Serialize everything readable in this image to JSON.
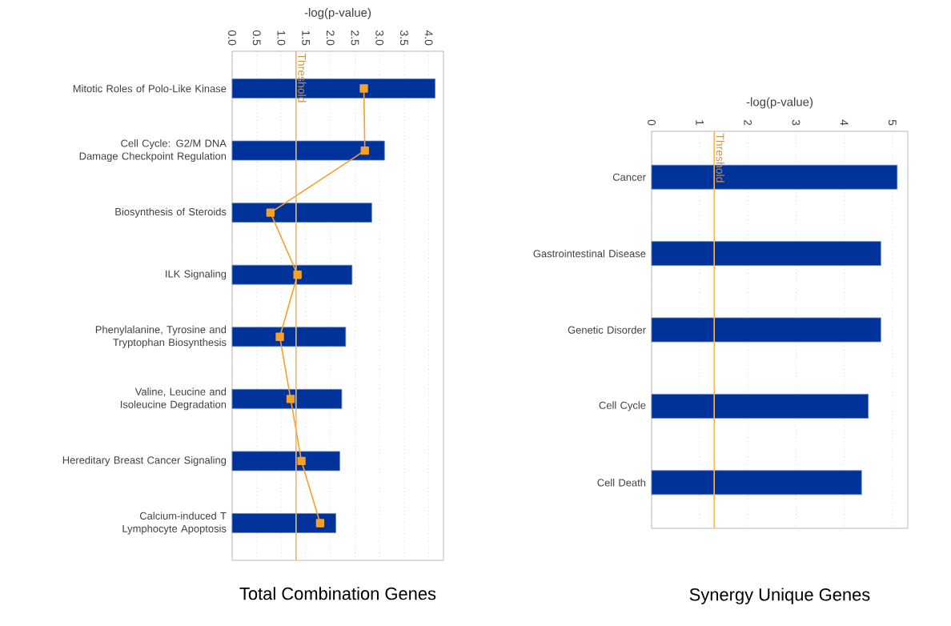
{
  "chart_data": [
    {
      "type": "bar",
      "orientation": "horizontal",
      "title": "Total Combination Genes",
      "xlabel": "-log(p-value)",
      "categories": [
        "Mitotic Roles of Polo-Like Kinase",
        "Cell Cycle: G2/M DNA Damage Checkpoint Regulation",
        "Biosynthesis of Steroids",
        "ILK Signaling",
        "Phenylalanine, Tyrosine and Tryptophan Biosynthesis",
        "Valine, Leucine and Isoleucine Degradation",
        "Hereditary Breast Cancer Signaling",
        "Calcium-induced T Lymphocyte Apoptosis"
      ],
      "series": [
        {
          "color": "#003399",
          "values": [
            4.13,
            3.1,
            2.84,
            2.44,
            2.31,
            2.23,
            2.19,
            2.11
          ]
        },
        {
          "type": "line",
          "color": "#f7a02a",
          "marker": "square",
          "values": [
            2.68,
            2.7,
            0.78,
            1.33,
            0.97,
            1.19,
            1.41,
            1.79
          ]
        }
      ],
      "xlim": [
        0,
        4.3
      ],
      "xticks": [
        {
          "value": 0,
          "label": "0.0"
        },
        0.5,
        {
          "value": 1,
          "label": "1.0"
        },
        1.5,
        {
          "value": 2,
          "label": "2.0"
        },
        2.5,
        {
          "value": 3,
          "label": "3.0"
        },
        3.5,
        {
          "value": 4,
          "label": "4.0"
        }
      ],
      "grid": "x",
      "ref_lines": [
        {
          "axis": "x",
          "value": 1.3,
          "label": "Threshold",
          "color": "#f9b55a"
        }
      ]
    },
    {
      "type": "bar",
      "orientation": "horizontal",
      "title": "Synergy Unique Genes",
      "xlabel": "-log(p-value)",
      "categories": [
        "Cancer",
        "Gastrointestinal Disease",
        "Genetic Disorder",
        "Cell Cycle",
        "Cell Death"
      ],
      "series": [
        {
          "color": "#003399",
          "values": [
            5.1,
            4.76,
            4.76,
            4.5,
            4.36
          ]
        }
      ],
      "xlim": [
        0,
        5.32
      ],
      "xticks": [
        0,
        1,
        2,
        3,
        4,
        5
      ],
      "grid": "x",
      "ref_lines": [
        {
          "axis": "x",
          "value": 1.3,
          "label": "Threshold",
          "color": "#f9b55a"
        }
      ]
    }
  ]
}
